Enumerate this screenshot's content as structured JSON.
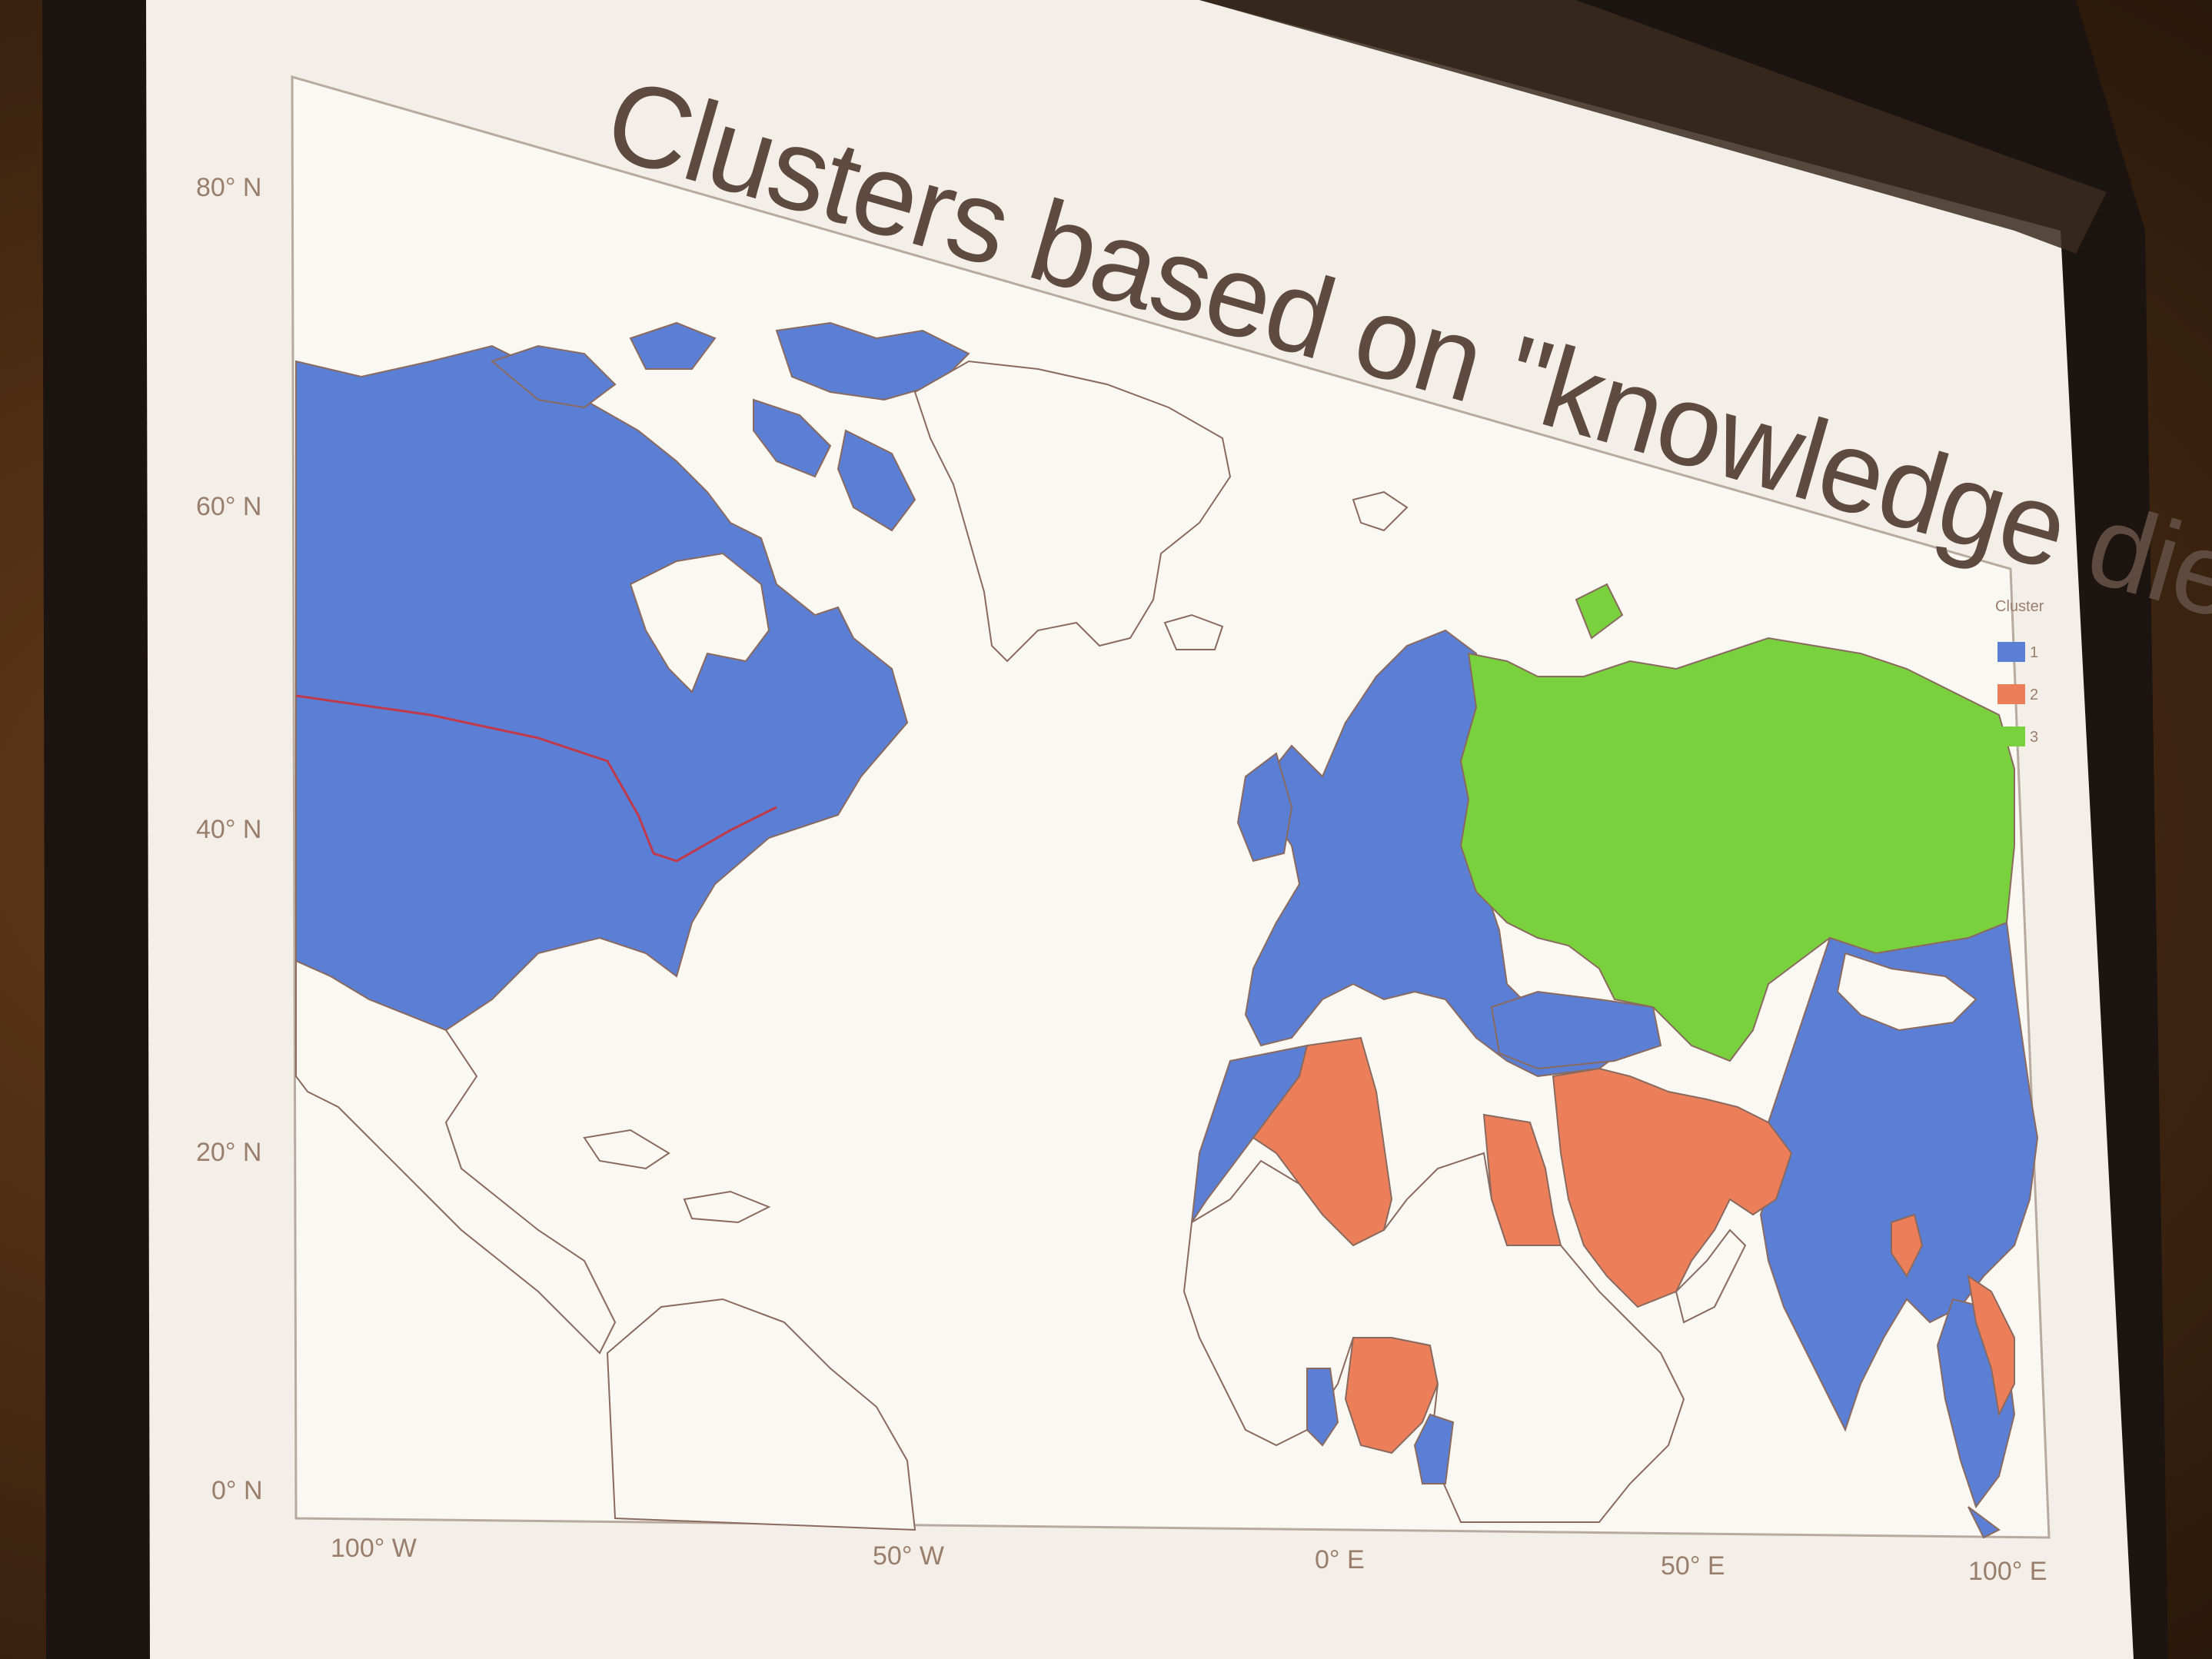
{
  "title": "Clusters based on \"knowledge diet\"",
  "legend": {
    "title": "Cluster",
    "items": [
      {
        "label": "1",
        "color": "#5b7fd4"
      },
      {
        "label": "2",
        "color": "#ec7f5a"
      },
      {
        "label": "3",
        "color": "#7ad13e"
      }
    ]
  },
  "axes": {
    "y_ticks": [
      "80° N",
      "60° N",
      "40° N",
      "20° N",
      "0° N"
    ],
    "x_ticks": [
      "100° W",
      "50° W",
      "0° E",
      "50° E",
      "100° E"
    ]
  },
  "colors": {
    "cluster_1": "#5b7fd4",
    "cluster_2": "#ec7f5a",
    "cluster_3": "#7ad13e",
    "unassigned_fill": "#f6f3ee",
    "border": "#8a6a5e",
    "screen": "#f3efe8",
    "frame": "#1c1410"
  },
  "map": {
    "type": "choropleth",
    "projection": "equirectangular",
    "lon_range": [
      "100° W",
      "100° E"
    ],
    "lat_range": [
      "0° N",
      "80° N"
    ]
  }
}
